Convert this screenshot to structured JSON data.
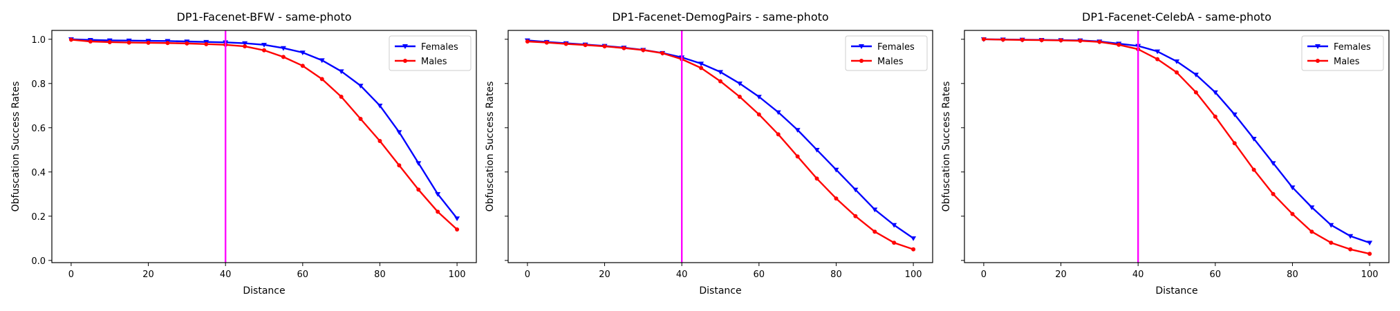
{
  "chart_data": [
    {
      "type": "line",
      "title": "DP1-Facenet-BFW - same-photo",
      "xlabel": "Distance",
      "ylabel": "Obfuscation Success Rates",
      "xlim": [
        -5,
        105
      ],
      "ylim": [
        -0.01,
        1.04
      ],
      "xticks": [
        0,
        20,
        40,
        60,
        80,
        100
      ],
      "yticks": [
        0.0,
        0.2,
        0.4,
        0.6,
        0.8,
        1.0
      ],
      "ytick_labels": [
        "0.0",
        "0.2",
        "0.4",
        "0.6",
        "0.8",
        "1.0"
      ],
      "vline": 40,
      "legend": "top-right",
      "series": [
        {
          "name": "Females",
          "color": "#0000ff",
          "marker": "triangle-down",
          "x": [
            0,
            5,
            10,
            15,
            20,
            25,
            30,
            35,
            40,
            45,
            50,
            55,
            60,
            65,
            70,
            75,
            80,
            85,
            90,
            95,
            100
          ],
          "y": [
            1.0,
            0.997,
            0.995,
            0.994,
            0.993,
            0.992,
            0.99,
            0.988,
            0.986,
            0.982,
            0.975,
            0.96,
            0.94,
            0.905,
            0.855,
            0.79,
            0.7,
            0.58,
            0.44,
            0.3,
            0.19
          ]
        },
        {
          "name": "Males",
          "color": "#ff0000",
          "marker": "dot",
          "x": [
            0,
            5,
            10,
            15,
            20,
            25,
            30,
            35,
            40,
            45,
            50,
            55,
            60,
            65,
            70,
            75,
            80,
            85,
            90,
            95,
            100
          ],
          "y": [
            0.998,
            0.99,
            0.987,
            0.985,
            0.984,
            0.983,
            0.981,
            0.978,
            0.975,
            0.968,
            0.95,
            0.92,
            0.88,
            0.82,
            0.74,
            0.64,
            0.54,
            0.43,
            0.32,
            0.22,
            0.14
          ]
        }
      ]
    },
    {
      "type": "line",
      "title": "DP1-Facenet-DemogPairs - same-photo",
      "xlabel": "Distance",
      "ylabel": "Obfuscation Success Rates",
      "xlim": [
        -5,
        105
      ],
      "ylim": [
        -0.01,
        1.04
      ],
      "xticks": [
        0,
        20,
        40,
        60,
        80,
        100
      ],
      "yticks": [
        0.0,
        0.2,
        0.4,
        0.6,
        0.8,
        1.0
      ],
      "ytick_labels": [
        "",
        "",
        "",
        "",
        "",
        ""
      ],
      "vline": 40,
      "legend": "top-right",
      "series": [
        {
          "name": "Females",
          "color": "#0000ff",
          "marker": "triangle-down",
          "x": [
            0,
            5,
            10,
            15,
            20,
            25,
            30,
            35,
            40,
            45,
            50,
            55,
            60,
            65,
            70,
            75,
            80,
            85,
            90,
            95,
            100
          ],
          "y": [
            0.995,
            0.988,
            0.982,
            0.976,
            0.97,
            0.962,
            0.952,
            0.938,
            0.918,
            0.89,
            0.852,
            0.8,
            0.74,
            0.67,
            0.59,
            0.5,
            0.41,
            0.32,
            0.23,
            0.16,
            0.1
          ]
        },
        {
          "name": "Males",
          "color": "#ff0000",
          "marker": "dot",
          "x": [
            0,
            5,
            10,
            15,
            20,
            25,
            30,
            35,
            40,
            45,
            50,
            55,
            60,
            65,
            70,
            75,
            80,
            85,
            90,
            95,
            100
          ],
          "y": [
            0.99,
            0.985,
            0.979,
            0.974,
            0.968,
            0.96,
            0.951,
            0.937,
            0.91,
            0.87,
            0.81,
            0.74,
            0.66,
            0.57,
            0.47,
            0.37,
            0.28,
            0.2,
            0.13,
            0.08,
            0.05
          ]
        }
      ]
    },
    {
      "type": "line",
      "title": "DP1-Facenet-CelebA - same-photo",
      "xlabel": "Distance",
      "ylabel": "Obfuscation Success Rates",
      "xlim": [
        -5,
        105
      ],
      "ylim": [
        -0.01,
        1.04
      ],
      "xticks": [
        0,
        20,
        40,
        60,
        80,
        100
      ],
      "yticks": [
        0.0,
        0.2,
        0.4,
        0.6,
        0.8,
        1.0
      ],
      "ytick_labels": [
        "",
        "",
        "",
        "",
        "",
        ""
      ],
      "vline": 40,
      "legend": "top-right",
      "series": [
        {
          "name": "Females",
          "color": "#0000ff",
          "marker": "triangle-down",
          "x": [
            0,
            5,
            10,
            15,
            20,
            25,
            30,
            35,
            40,
            45,
            50,
            55,
            60,
            65,
            70,
            75,
            80,
            85,
            90,
            95,
            100
          ],
          "y": [
            1.0,
            0.999,
            0.998,
            0.997,
            0.996,
            0.995,
            0.99,
            0.98,
            0.97,
            0.945,
            0.9,
            0.84,
            0.76,
            0.66,
            0.55,
            0.44,
            0.33,
            0.24,
            0.16,
            0.11,
            0.08
          ]
        },
        {
          "name": "Males",
          "color": "#ff0000",
          "marker": "dot",
          "x": [
            0,
            5,
            10,
            15,
            20,
            25,
            30,
            35,
            40,
            45,
            50,
            55,
            60,
            65,
            70,
            75,
            80,
            85,
            90,
            95,
            100
          ],
          "y": [
            1.0,
            0.998,
            0.997,
            0.996,
            0.995,
            0.993,
            0.988,
            0.975,
            0.955,
            0.91,
            0.85,
            0.76,
            0.65,
            0.53,
            0.41,
            0.3,
            0.21,
            0.13,
            0.08,
            0.05,
            0.03
          ]
        }
      ]
    }
  ]
}
